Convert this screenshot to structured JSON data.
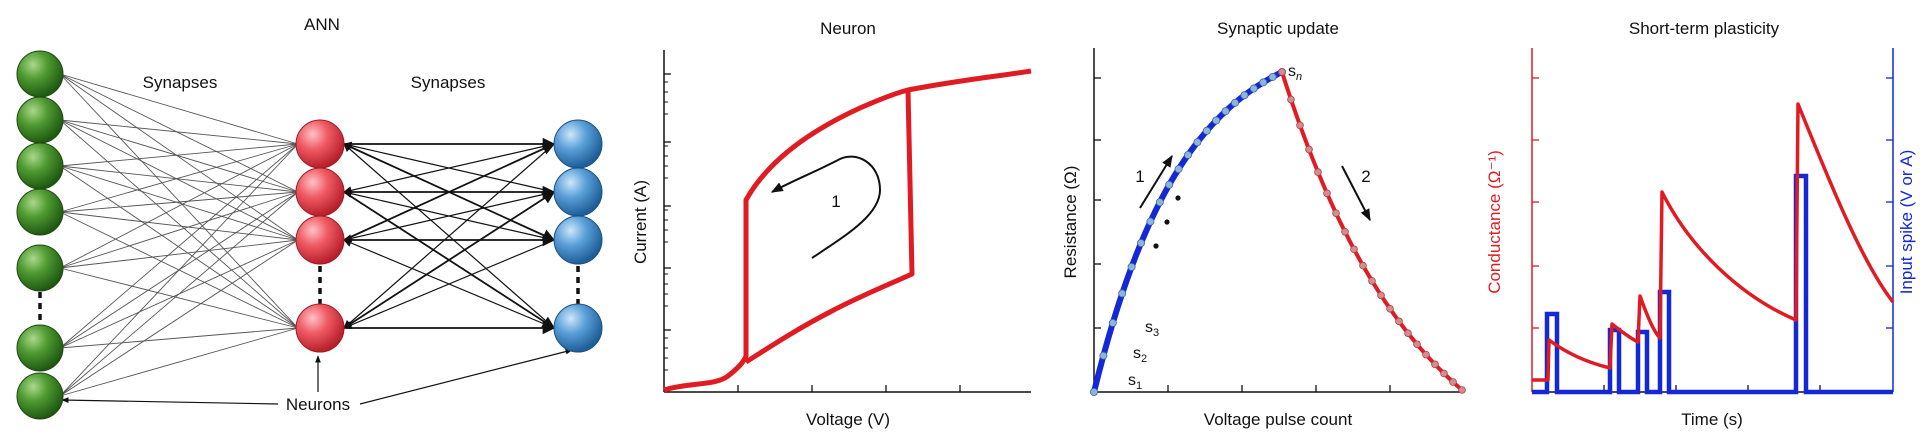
{
  "colors": {
    "green": "#3f8a2a",
    "red": "#e84b55",
    "blue": "#4a90cc",
    "curve_red": "#e11b22",
    "curve_blue": "#1428d6",
    "axis": "#111111"
  },
  "ann": {
    "title": "ANN",
    "synapses_left": "Synapses",
    "synapses_right": "Synapses",
    "neurons_label": "Neurons"
  },
  "neuron": {
    "title": "Neuron",
    "xlabel": "Voltage (V)",
    "ylabel": "Current (A)",
    "loop_label": "1"
  },
  "synaptic": {
    "title": "Synaptic update",
    "xlabel": "Voltage pulse count",
    "ylabel": "Resistance (Ω)",
    "arrow1": "1",
    "arrow2": "2",
    "s1": "s1",
    "s2": "s2",
    "s3": "s3",
    "sn": "sn"
  },
  "stp": {
    "title": "Short-term plasticity",
    "xlabel": "Time (s)",
    "ylabel_left": "Conductance (Ω⁻¹)",
    "ylabel_right": "Input spike (V or A)"
  }
}
